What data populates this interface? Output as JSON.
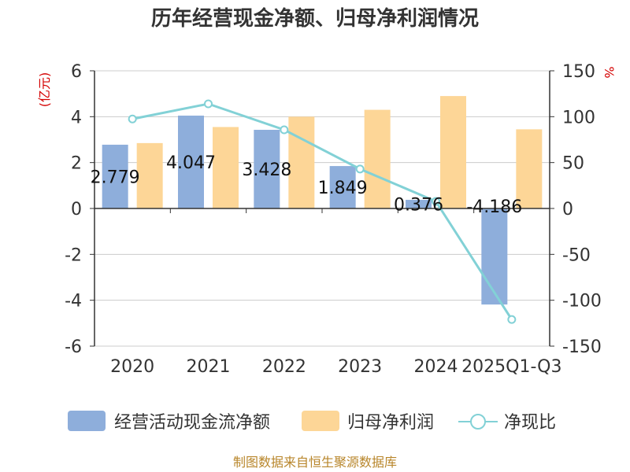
{
  "chart_data": {
    "type": "bar",
    "title": "历年经营现金净额、归母净利润情况",
    "categories": [
      "2020",
      "2021",
      "2022",
      "2023",
      "2024",
      "2025Q1-Q3"
    ],
    "series": [
      {
        "name": "经营活动现金流净额",
        "kind": "bar",
        "axis": "left",
        "color": "#8eaedb",
        "values": [
          2.779,
          4.047,
          3.428,
          1.849,
          0.376,
          -4.186
        ],
        "labels": [
          "2.779",
          "4.047",
          "3.428",
          "1.849",
          "0.376",
          "-4.186"
        ]
      },
      {
        "name": "归母净利润",
        "kind": "bar",
        "axis": "left",
        "color": "#fdd697",
        "values": [
          2.85,
          3.55,
          4.0,
          4.3,
          4.9,
          3.45
        ]
      },
      {
        "name": "净现比",
        "kind": "line",
        "axis": "right",
        "color": "#82d1d6",
        "values": [
          97.5,
          114,
          85.7,
          43,
          7.7,
          -121
        ]
      }
    ],
    "left_axis": {
      "label": "(亿元)",
      "min": -6,
      "max": 6,
      "ticks": [
        "6",
        "4",
        "2",
        "0",
        "-2",
        "-4",
        "-6"
      ]
    },
    "right_axis": {
      "label": "%",
      "min": -150,
      "max": 150,
      "ticks": [
        "150",
        "100",
        "50",
        "0",
        "-50",
        "-100",
        "-150"
      ]
    },
    "grid": true,
    "legend_position": "bottom",
    "source": "制图数据来自恒生聚源数据库"
  }
}
